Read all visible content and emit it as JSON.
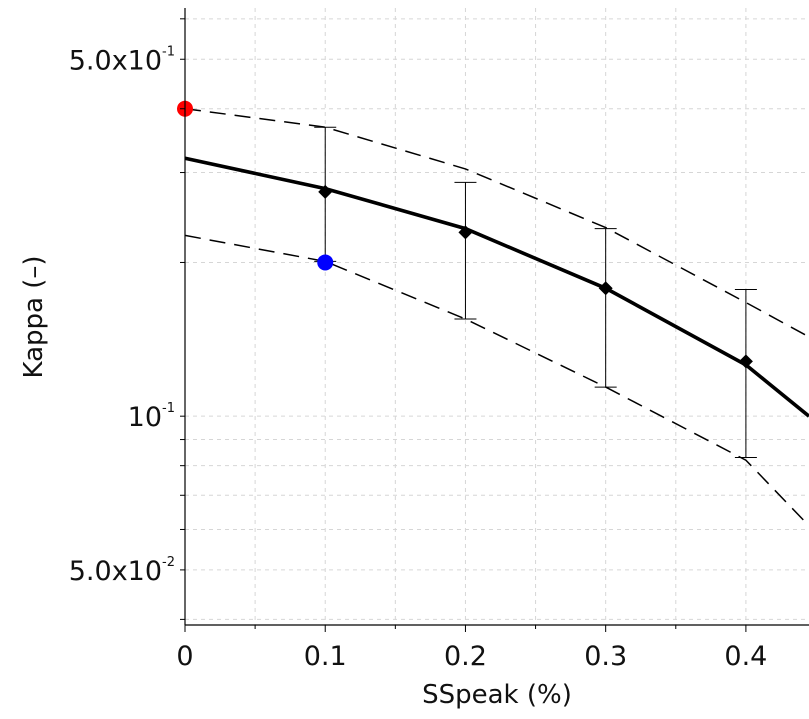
{
  "chart_data": {
    "type": "line",
    "xlabel": "SSpeak (%)",
    "ylabel": "Kappa (–)",
    "y_scale": "log",
    "xlim": [
      0,
      0.445
    ],
    "ylim": [
      0.039,
      0.63
    ],
    "grid": true,
    "x_ticks": [
      {
        "value": 0,
        "label": "0"
      },
      {
        "value": 0.1,
        "label": "0.1"
      },
      {
        "value": 0.2,
        "label": "0.2"
      },
      {
        "value": 0.3,
        "label": "0.3"
      },
      {
        "value": 0.4,
        "label": "0.4"
      }
    ],
    "y_ticks": [
      {
        "value": 0.05,
        "base": "5.0x10",
        "exp": "-2"
      },
      {
        "value": 0.1,
        "base": "10",
        "exp": "-1"
      },
      {
        "value": 0.5,
        "base": "5.0x10",
        "exp": "-1"
      }
    ],
    "series": [
      {
        "role": "fit",
        "style": "solid",
        "color": "#000000",
        "x": [
          0,
          0.1,
          0.2,
          0.3,
          0.4,
          0.445
        ],
        "y": [
          0.32,
          0.279,
          0.233,
          0.178,
          0.126,
          0.1
        ]
      },
      {
        "role": "upper-bound",
        "style": "dashed",
        "color": "#000000",
        "x": [
          0,
          0.1,
          0.2,
          0.3,
          0.4,
          0.445
        ],
        "y": [
          0.4,
          0.368,
          0.305,
          0.234,
          0.167,
          0.143
        ]
      },
      {
        "role": "lower-bound",
        "style": "dashed",
        "color": "#000000",
        "x": [
          0,
          0.1,
          0.2,
          0.3,
          0.4,
          0.445
        ],
        "y": [
          0.226,
          0.201,
          0.155,
          0.114,
          0.082,
          0.061
        ]
      }
    ],
    "points": {
      "marker": "diamond",
      "color": "#000000",
      "x": [
        0.1,
        0.2,
        0.3,
        0.4
      ],
      "y": [
        0.275,
        0.229,
        0.178,
        0.128
      ],
      "err_low": [
        0.201,
        0.155,
        0.114,
        0.083
      ],
      "err_high": [
        0.368,
        0.287,
        0.233,
        0.177
      ]
    },
    "highlights": [
      {
        "x": 0,
        "y": 0.4,
        "color": "#ff0000"
      },
      {
        "x": 0.1,
        "y": 0.2,
        "color": "#0000ff"
      }
    ]
  }
}
